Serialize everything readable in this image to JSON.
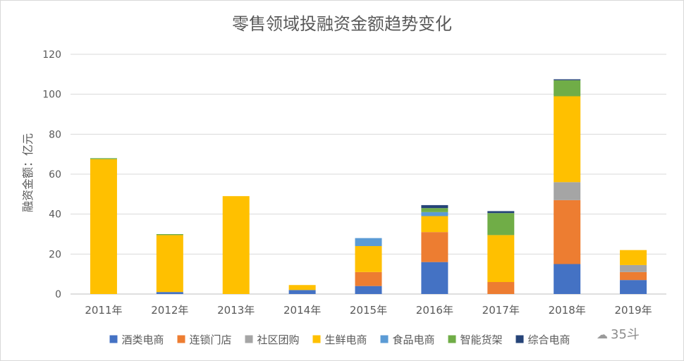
{
  "chart_data": {
    "type": "bar",
    "stacked": true,
    "title": "零售领域投融资金额趋势变化",
    "ylabel": "融资金额：亿元",
    "xlabel": "",
    "ylim": [
      0,
      120
    ],
    "yticks": [
      0,
      20,
      40,
      60,
      80,
      100,
      120
    ],
    "grid": true,
    "legend_position": "bottom",
    "categories": [
      "2011年",
      "2012年",
      "2013年",
      "2014年",
      "2015年",
      "2016年",
      "2017年",
      "2018年",
      "2019年"
    ],
    "series": [
      {
        "name": "酒类电商",
        "color": "#4472C4",
        "values": [
          0,
          1,
          0,
          2,
          4,
          16,
          0,
          15,
          7
        ]
      },
      {
        "name": "连锁门店",
        "color": "#ED7D31",
        "values": [
          0,
          0,
          0,
          0,
          7,
          15,
          6,
          32,
          4
        ]
      },
      {
        "name": "社区团购",
        "color": "#A5A5A5",
        "values": [
          0,
          0,
          0,
          0,
          0,
          0,
          0,
          9,
          3.5
        ]
      },
      {
        "name": "生鲜电商",
        "color": "#FFC000",
        "values": [
          67.5,
          28.5,
          49,
          2.5,
          13,
          8,
          23.5,
          43,
          7.5
        ]
      },
      {
        "name": "食品电商",
        "color": "#5B9BD5",
        "values": [
          0,
          0,
          0,
          0,
          4,
          2,
          0,
          0,
          0
        ]
      },
      {
        "name": "智能货架",
        "color": "#70AD47",
        "values": [
          0.5,
          0.5,
          0,
          0,
          0,
          2,
          11,
          8,
          0
        ]
      },
      {
        "name": "综合电商",
        "color": "#264478",
        "values": [
          0,
          0,
          0,
          0,
          0,
          1.5,
          1,
          0.5,
          0
        ]
      }
    ]
  },
  "watermark": "35斗"
}
